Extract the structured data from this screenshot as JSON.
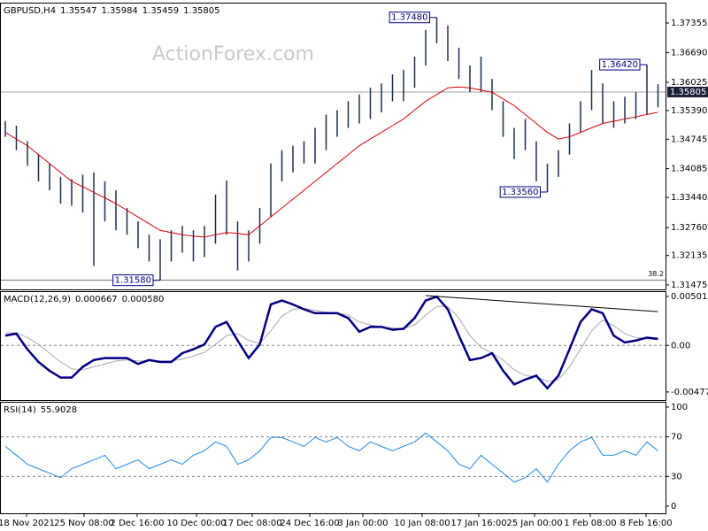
{
  "chart_data": [
    {
      "type": "ohlc",
      "title": "GBPUSD,H4",
      "quote": [
        1.35547,
        1.35984,
        1.35459,
        1.35805
      ],
      "watermark": "ActionForex.com",
      "bar_color": "#1f2d52",
      "high": [
        1.3515,
        1.3505,
        1.347,
        1.344,
        1.342,
        1.339,
        1.3385,
        1.3395,
        1.34,
        1.338,
        1.336,
        1.332,
        1.329,
        1.326,
        1.325,
        1.327,
        1.328,
        1.327,
        1.328,
        1.335,
        1.3382,
        1.329,
        1.327,
        1.332,
        1.342,
        1.345,
        1.346,
        1.347,
        1.35,
        1.353,
        1.354,
        1.356,
        1.3575,
        1.359,
        1.36,
        1.362,
        1.363,
        1.366,
        1.372,
        1.3748,
        1.373,
        1.368,
        1.364,
        1.366,
        1.361,
        1.356,
        1.35,
        1.352,
        1.347,
        1.342,
        1.345,
        1.351,
        1.356,
        1.363,
        1.36,
        1.356,
        1.357,
        1.358,
        1.3642,
        1.3598
      ],
      "low": [
        1.348,
        1.345,
        1.3415,
        1.338,
        1.336,
        1.333,
        1.3325,
        1.331,
        1.319,
        1.329,
        1.327,
        1.326,
        1.323,
        1.32,
        1.3158,
        1.32,
        1.322,
        1.32,
        1.321,
        1.324,
        1.326,
        1.318,
        1.32,
        1.324,
        1.33,
        1.338,
        1.34,
        1.342,
        1.342,
        1.345,
        1.348,
        1.35,
        1.351,
        1.352,
        1.3535,
        1.356,
        1.356,
        1.359,
        1.364,
        1.369,
        1.365,
        1.361,
        1.358,
        1.358,
        1.354,
        1.348,
        1.343,
        1.345,
        1.338,
        1.3356,
        1.339,
        1.344,
        1.349,
        1.354,
        1.351,
        1.35,
        1.351,
        1.352,
        1.353,
        1.3546
      ],
      "lines": [
        {
          "color": "#d40000",
          "width": 1,
          "values": [
            1.349,
            1.3475,
            1.346,
            1.344,
            1.342,
            1.34,
            1.338,
            1.3368,
            1.3355,
            1.3343,
            1.333,
            1.3315,
            1.33,
            1.3285,
            1.327,
            1.3265,
            1.326,
            1.3257,
            1.3255,
            1.326,
            1.3265,
            1.3263,
            1.326,
            1.328,
            1.33,
            1.332,
            1.334,
            1.336,
            1.338,
            1.34,
            1.342,
            1.344,
            1.346,
            1.3475,
            1.349,
            1.3505,
            1.352,
            1.354,
            1.356,
            1.3575,
            1.359,
            1.3592,
            1.359,
            1.3585,
            1.358,
            1.3565,
            1.355,
            1.353,
            1.351,
            1.349,
            1.3475,
            1.348,
            1.349,
            1.35,
            1.351,
            1.3515,
            1.352,
            1.3525,
            1.353,
            1.3535
          ]
        }
      ],
      "current_price": 1.35805,
      "annotations": [
        {
          "value": 1.3748,
          "label": "1.37480"
        },
        {
          "value": 1.3642,
          "label": "1.36420"
        },
        {
          "value": 1.3356,
          "label": "1.33560"
        },
        {
          "value": 1.3158,
          "label": "1.31580"
        }
      ],
      "fib_level": {
        "value": 1.3158,
        "label": "38.2"
      },
      "ylim": [
        1.31374,
        1.37812
      ],
      "yticks": [
        1.37355,
        {
          "value": 1.3669,
          "label": "1.36690"
        },
        1.36025,
        {
          "value": 1.3539,
          "label": "1.35390"
        },
        1.34745,
        1.34085,
        {
          "value": 1.3344,
          "label": "1.33440"
        },
        {
          "value": 1.3276,
          "label": "1.32760"
        },
        1.32135,
        1.31475
      ]
    },
    {
      "type": "line",
      "title": "MACD(12,26,9)",
      "readout": [
        0.000667,
        {
          "value": 0.00058,
          "label": "0.000580"
        }
      ],
      "lines": [
        {
          "color": "#a8a8b8",
          "width": 1,
          "values": [
            0.0013,
            0.0013,
            0.0008,
            0.0001,
            -0.0008,
            -0.0017,
            -0.0024,
            -0.0025,
            -0.0022,
            -0.0019,
            -0.0016,
            -0.0015,
            -0.0016,
            -0.0016,
            -0.0016,
            -0.0016,
            -0.0014,
            -0.0011,
            -0.0007,
            0.0001,
            0.001,
            0.0012,
            0.0005,
            0.0002,
            0.0015,
            0.003,
            0.0037,
            0.0038,
            0.0036,
            0.0034,
            0.0033,
            0.0031,
            0.0024,
            0.0021,
            0.0019,
            0.0018,
            0.0017,
            0.0021,
            0.0031,
            0.004,
            0.004,
            0.0028,
            0.001,
            -0.0002,
            -0.0008,
            -0.0015,
            -0.0025,
            -0.0031,
            -0.0032,
            -0.0037,
            -0.0035,
            -0.0022,
            -0.0004,
            0.0015,
            0.0026,
            0.002,
            0.0012,
            0.0008,
            0.0007,
            0.00058
          ]
        },
        {
          "color": "#000080",
          "width": 2.5,
          "values": [
            0.001,
            0.0012,
            -0.0004,
            -0.0017,
            -0.0026,
            -0.0033,
            -0.0033,
            -0.0022,
            -0.0015,
            -0.0013,
            -0.0013,
            -0.0013,
            -0.0019,
            -0.0015,
            -0.0017,
            -0.0017,
            -0.0008,
            -0.0004,
            0.0001,
            0.0019,
            0.0024,
            0.0005,
            -0.0013,
            0.0001,
            0.0042,
            0.0046,
            0.0042,
            0.0037,
            0.0033,
            0.0033,
            0.0033,
            0.0028,
            0.0014,
            0.0019,
            0.0019,
            0.0016,
            0.0017,
            0.0028,
            0.0046,
            0.005,
            0.0037,
            0.001,
            -0.0015,
            -0.0013,
            -0.0008,
            -0.0026,
            -0.004,
            -0.0035,
            -0.0031,
            -0.0044,
            -0.0031,
            -0.0004,
            0.0024,
            0.0037,
            0.0033,
            0.001,
            0.0003,
            0.0005,
            0.0008,
            0.000667
          ]
        }
      ],
      "trendline": [
        [
          38,
          0.005105
        ],
        [
          59,
          0.003461
        ]
      ],
      "levels": [
        0
      ],
      "ylim": [
        -0.0056,
        0.00556
      ],
      "yticks": [
        0.005015,
        {
          "value": 0,
          "label": "0.00"
        },
        -0.004773
      ]
    },
    {
      "type": "line",
      "title": "RSI(14)",
      "readout": [
        55.9028
      ],
      "lines": [
        {
          "color": "#1e88e5",
          "width": 1,
          "values": [
            60.4,
            51.4,
            42.3,
            37.8,
            33.3,
            28.8,
            37.8,
            42.3,
            46.8,
            51.4,
            37.8,
            42.3,
            46.8,
            37.8,
            42.3,
            46.8,
            42.3,
            51.4,
            55.9,
            64.9,
            60.4,
            42.3,
            46.8,
            55.9,
            69.4,
            69.4,
            64.9,
            60.4,
            69.4,
            64.9,
            69.4,
            60.4,
            55.9,
            64.9,
            60.4,
            55.9,
            60.4,
            64.9,
            73.9,
            64.9,
            55.9,
            42.3,
            37.8,
            51.4,
            42.3,
            33.3,
            24.3,
            28.8,
            37.8,
            24.3,
            42.3,
            55.9,
            64.9,
            69.4,
            51.4,
            51.4,
            55.9,
            51.4,
            64.9,
            55.9028
          ]
        }
      ],
      "levels": [
        70,
        30
      ],
      "ylim": [
        -7.2,
        105.4
      ],
      "yticks": [
        100,
        70,
        30,
        0
      ],
      "xticks": [
        {
          "value": 1.92,
          "label": "18 Nov 2021"
        },
        {
          "value": 7.12,
          "label": "25 Nov 08:00"
        },
        {
          "value": 11.92,
          "label": "2 Dec 16:00"
        },
        {
          "value": 17.28,
          "label": "10 Dec 00:00"
        },
        {
          "value": 22.32,
          "label": "17 Dec 08:00"
        },
        {
          "value": 27.52,
          "label": "24 Dec 16:00"
        },
        {
          "value": 32.32,
          "label": "3 Jan 00:00"
        },
        {
          "value": 37.68,
          "label": "10 Jan 08:00"
        },
        {
          "value": 42.8,
          "label": "17 Jan 16:00"
        },
        {
          "value": 47.84,
          "label": "25 Jan 00:00"
        },
        {
          "value": 52.88,
          "label": "1 Feb 08:00"
        },
        {
          "value": 57.92,
          "label": "8 Feb 16:00"
        }
      ]
    }
  ]
}
